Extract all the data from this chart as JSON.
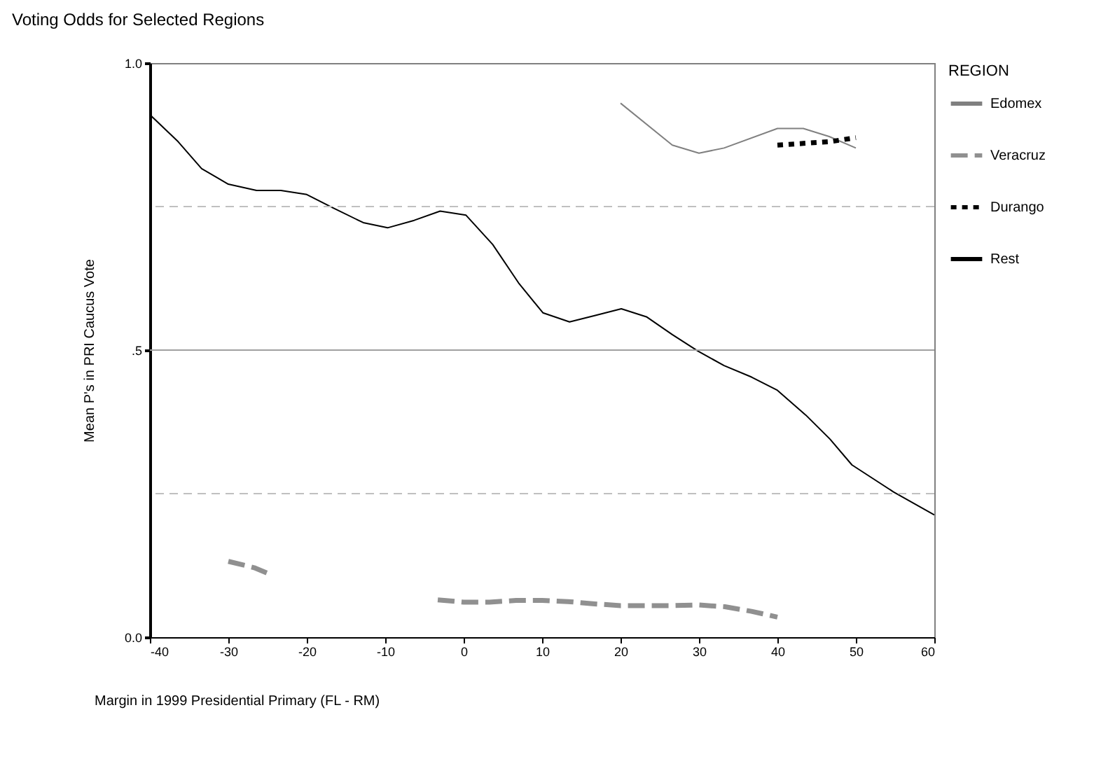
{
  "chart_data": {
    "type": "line",
    "title": "Voting Odds for Selected Regions",
    "xlabel": "Margin in 1999 Presidential Primary (FL - RM)",
    "ylabel": "Mean P's in PRI Caucus Vote",
    "legend_title": "REGION",
    "legend": "right",
    "xlim": [
      -40,
      60
    ],
    "xticks": [
      -40,
      -30,
      -20,
      -10,
      0,
      10,
      20,
      30,
      40,
      50,
      60
    ],
    "ylim": [
      0,
      1
    ],
    "yticks": [
      {
        "value": 0,
        "label": "0.0"
      },
      {
        "value": 0.5,
        "label": ".5"
      },
      {
        "value": 1,
        "label": "1.0"
      }
    ],
    "ref_lines": [
      {
        "axis": "y",
        "value": 0.25,
        "color": "#c0c0c0",
        "line_style": "dashed"
      },
      {
        "axis": "y",
        "value": 0.5,
        "color": "#a0a0a0",
        "line_style": "solid"
      },
      {
        "axis": "y",
        "value": 0.75,
        "color": "#c0c0c0",
        "line_style": "dashed"
      }
    ],
    "series": [
      {
        "name": "Edomex",
        "color": "#808080",
        "line_style": "solid",
        "x": [
          20,
          26.6,
          30,
          33.2,
          40,
          43.3,
          46.6,
          50
        ],
        "values": [
          0.93,
          0.857,
          0.843,
          0.852,
          0.886,
          0.886,
          0.872,
          0.852
        ]
      },
      {
        "name": "Veracruz",
        "color": "#909090",
        "line_style": "dashed",
        "x": [
          -30,
          -26.7,
          -25.1,
          -14,
          -3.3,
          0,
          3.3,
          6.7,
          10,
          13.3,
          16.7,
          20,
          23.3,
          26.7,
          30,
          33.3,
          36.7,
          40
        ],
        "values": [
          0.132,
          0.121,
          0.112,
          null,
          0.065,
          0.061,
          0.061,
          0.064,
          0.064,
          0.062,
          0.058,
          0.055,
          0.055,
          0.055,
          0.056,
          0.053,
          0.045,
          0.035
        ]
      },
      {
        "name": "Durango",
        "color": "#000000",
        "line_style": "dotted",
        "x": [
          40,
          43.3,
          46.7,
          50
        ],
        "values": [
          0.857,
          0.86,
          0.863,
          0.87
        ]
      },
      {
        "name": "Rest",
        "color": "#000000",
        "line_style": "solid",
        "x": [
          -40,
          -36.4,
          -33.4,
          -30,
          -26.4,
          -23.3,
          -20,
          -16.7,
          -12.8,
          -9.7,
          -6.3,
          -3,
          0.3,
          3.7,
          7,
          10.1,
          13.5,
          16.7,
          20.1,
          23.3,
          26.6,
          29.9,
          33.2,
          36.7,
          40,
          43.6,
          46.7,
          49.5,
          54.8,
          60
        ],
        "values": [
          0.91,
          0.863,
          0.816,
          0.789,
          0.778,
          0.778,
          0.771,
          0.748,
          0.722,
          0.713,
          0.726,
          0.742,
          0.735,
          0.684,
          0.617,
          0.565,
          0.549,
          0.56,
          0.572,
          0.558,
          0.527,
          0.498,
          0.473,
          0.453,
          0.43,
          0.387,
          0.345,
          0.3,
          0.253,
          0.213
        ]
      }
    ]
  }
}
